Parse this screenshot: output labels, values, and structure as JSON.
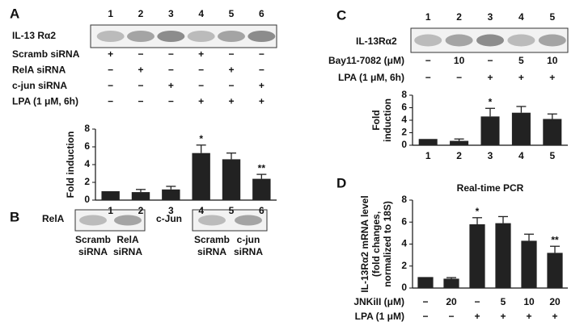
{
  "panel_labels": [
    "A",
    "B",
    "C",
    "D"
  ],
  "panel_a": {
    "lanes": [
      "1",
      "2",
      "3",
      "4",
      "5",
      "6"
    ],
    "blot_label": "IL-13 Rα2",
    "rows": [
      {
        "label": "Scramb siRNA",
        "cells": [
          "+",
          "−",
          "−",
          "+",
          "−",
          "−"
        ]
      },
      {
        "label": "RelA siRNA",
        "cells": [
          "−",
          "+",
          "−",
          "−",
          "+",
          "−"
        ]
      },
      {
        "label": "c-jun siRNA",
        "cells": [
          "−",
          "−",
          "+",
          "−",
          "−",
          "+"
        ]
      },
      {
        "label": "LPA (1 μM, 6h)",
        "cells": [
          "−",
          "−",
          "−",
          "+",
          "+",
          "+"
        ]
      }
    ]
  },
  "panel_b": {
    "blots": [
      {
        "label": "RelA",
        "lanes": [
          [
            "Scramb",
            "siRNA"
          ],
          [
            "RelA",
            "siRNA"
          ]
        ]
      },
      {
        "label": "c-Jun",
        "lanes": [
          [
            "Scramb",
            "siRNA"
          ],
          [
            "c-jun",
            "siRNA"
          ]
        ]
      }
    ]
  },
  "panel_c": {
    "lanes": [
      "1",
      "2",
      "3",
      "4",
      "5"
    ],
    "blot_label": "IL-13Rα2",
    "rows": [
      {
        "label": "Bay11-7082 (μM)",
        "cells": [
          "−",
          "10",
          "−",
          "5",
          "10"
        ]
      },
      {
        "label": "LPA (1 μM, 6h)",
        "cells": [
          "−",
          "−",
          "+",
          "+",
          "+"
        ]
      }
    ]
  },
  "panel_d": {
    "rows": [
      {
        "label": "JNKiII (μM)",
        "cells": [
          "−",
          "20",
          "−",
          "5",
          "10",
          "20"
        ]
      },
      {
        "label": "LPA (1 μM)",
        "cells": [
          "−",
          "−",
          "+",
          "+",
          "+",
          "+"
        ]
      }
    ]
  },
  "chart_data": [
    {
      "type": "bar",
      "ylabel": [
        "Fold induction"
      ],
      "categories": [
        "1",
        "2",
        "3",
        "4",
        "5",
        "6"
      ],
      "series": [
        {
          "color": "#222222",
          "values": [
            1,
            0.9,
            1.2,
            5.3,
            4.6,
            2.4
          ],
          "errors": [
            null,
            0.3,
            0.35,
            0.9,
            0.7,
            0.5
          ]
        }
      ],
      "annotations": [
        null,
        null,
        null,
        "*",
        null,
        "**"
      ],
      "ylim": [
        0,
        8
      ],
      "yticks": [
        0,
        2,
        4,
        6,
        8
      ]
    },
    {
      "type": "bar",
      "ylabel": [
        "Fold",
        "induction"
      ],
      "categories": [
        "1",
        "2",
        "3",
        "4",
        "5"
      ],
      "series": [
        {
          "color": "#222222",
          "values": [
            1,
            0.7,
            4.6,
            5.2,
            4.2
          ],
          "errors": [
            null,
            0.3,
            1.3,
            1.0,
            0.8
          ]
        }
      ],
      "annotations": [
        null,
        null,
        "*",
        null,
        null
      ],
      "ylim": [
        0,
        8
      ],
      "yticks": [
        0,
        2,
        4,
        6,
        8
      ]
    },
    {
      "type": "bar",
      "title": "Real-time PCR",
      "ylabel": [
        "IL-13Rα2 mRNA level",
        "(fold changes,",
        "normalized to 18S)"
      ],
      "series": [
        {
          "color": "#222222",
          "values": [
            1,
            0.85,
            5.8,
            5.9,
            4.3,
            3.2
          ],
          "errors": [
            null,
            0.1,
            0.6,
            0.6,
            0.6,
            0.6
          ]
        }
      ],
      "annotations": [
        null,
        null,
        "*",
        null,
        null,
        "**"
      ],
      "ylim": [
        0,
        8
      ],
      "yticks": [
        0,
        2,
        4,
        6,
        8
      ]
    }
  ]
}
